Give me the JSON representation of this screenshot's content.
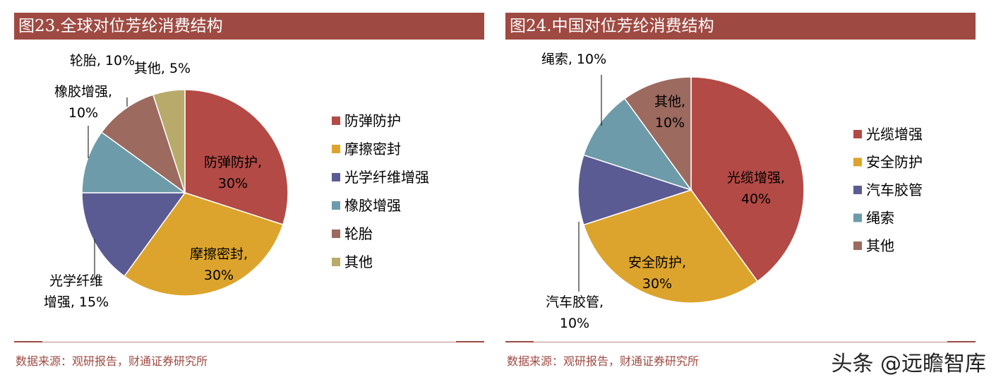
{
  "charts": [
    {
      "title": "图23.全球对位芳纶消费结构",
      "source": "数据来源：观研报告，财通证券研究所",
      "chart_data": {
        "type": "pie",
        "title": "图23.全球对位芳纶消费结构",
        "legend_position": "right",
        "slices": [
          {
            "name": "防弹防护",
            "value": 30,
            "color": "#b34a45",
            "label": [
              "防弹防护,",
              "30%"
            ]
          },
          {
            "name": "摩擦密封",
            "value": 30,
            "color": "#dca42c",
            "label": [
              "摩擦密封,",
              "30%"
            ]
          },
          {
            "name": "光学纤维增强",
            "value": 15,
            "color": "#5b5b93",
            "label": [
              "光学纤维",
              "增强, 15%"
            ]
          },
          {
            "name": "橡胶增强",
            "value": 10,
            "color": "#6d9ba9",
            "label": [
              "橡胶增强,",
              "10%"
            ]
          },
          {
            "name": "轮胎",
            "value": 10,
            "color": "#9c6a5f",
            "label": [
              "轮胎, 10%"
            ]
          },
          {
            "name": "其他",
            "value": 5,
            "color": "#b7aa6a",
            "label": [
              "其他, 5%"
            ]
          }
        ]
      }
    },
    {
      "title": "图24.中国对位芳纶消费结构",
      "source": "数据来源：观研报告，财通证券研究所",
      "chart_data": {
        "type": "pie",
        "title": "图24.中国对位芳纶消费结构",
        "legend_position": "right",
        "slices": [
          {
            "name": "光缆增强",
            "value": 40,
            "color": "#b34a45",
            "label": [
              "光缆增强,",
              "40%"
            ]
          },
          {
            "name": "安全防护",
            "value": 30,
            "color": "#dca42c",
            "label": [
              "安全防护,",
              "30%"
            ]
          },
          {
            "name": "汽车胶管",
            "value": 10,
            "color": "#5b5b93",
            "label": [
              "汽车胶管,",
              "10%"
            ]
          },
          {
            "name": "绳索",
            "value": 10,
            "color": "#6d9ba9",
            "label": [
              "绳索, 10%"
            ]
          },
          {
            "name": "其他",
            "value": 10,
            "color": "#9c6a5f",
            "label": [
              "其他,",
              "10%"
            ]
          }
        ]
      }
    }
  ],
  "watermark": "头条 @远瞻智库"
}
